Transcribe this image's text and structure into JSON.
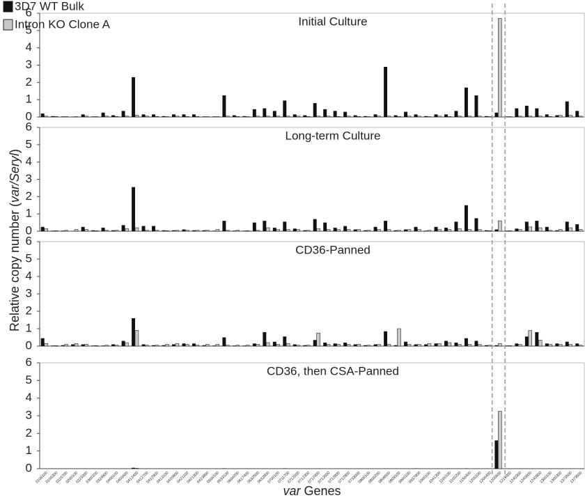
{
  "axis_labels": {
    "y": [
      "Relative copy number (",
      "var/Seryl",
      ")"
    ],
    "x": [
      "var",
      " Genes"
    ]
  },
  "chart_data": [
    {
      "type": "bar",
      "title": "Initial Culture",
      "ylim": [
        0,
        6
      ],
      "yticks": [
        0,
        1,
        2,
        3,
        4,
        5,
        6
      ],
      "legend": "top-left",
      "series": [
        {
          "name": "3D7 WT Bulk",
          "color": "#111111",
          "values": [
            0.2,
            0.05,
            0.03,
            0.02,
            0.15,
            0.03,
            0.25,
            0.1,
            0.35,
            2.3,
            0.15,
            0.15,
            0.05,
            0.15,
            0.15,
            0.15,
            0.03,
            0.03,
            1.25,
            0.1,
            0.05,
            0.45,
            0.5,
            0.35,
            0.95,
            0.15,
            0.1,
            0.8,
            0.45,
            0.35,
            0.3,
            0.1,
            0.05,
            0.15,
            2.9,
            0.1,
            0.3,
            0.15,
            0.05,
            0.15,
            0.15,
            0.35,
            1.7,
            1.25,
            0.05,
            0.25,
            0.03,
            0.5,
            0.65,
            0.5,
            0.15,
            0.1,
            0.9,
            0.35
          ]
        },
        {
          "name": "Intron KO Clone A",
          "color": "#c8c8c8",
          "values": [
            0.05,
            0.03,
            0.02,
            0.02,
            0.05,
            0.02,
            0.05,
            0.03,
            0.05,
            0.1,
            0.05,
            0.03,
            0.02,
            0.05,
            0.03,
            0.03,
            0.02,
            0.02,
            0.05,
            0.03,
            0.02,
            0.05,
            0.05,
            0.05,
            0.05,
            0.05,
            0.03,
            0.05,
            0.05,
            0.03,
            0.05,
            0.03,
            0.02,
            0.05,
            0.05,
            0.03,
            0.05,
            0.05,
            0.02,
            0.05,
            0.03,
            0.05,
            0.05,
            0.05,
            0.02,
            5.7,
            0.02,
            0.05,
            0.05,
            0.05,
            0.03,
            0.1,
            0.1,
            0.05
          ]
        }
      ]
    },
    {
      "type": "bar",
      "title": "Long-term Culture",
      "ylim": [
        0,
        6
      ],
      "yticks": [
        0,
        1,
        2,
        3,
        4,
        5,
        6
      ],
      "series": [
        {
          "name": "3D7 WT Bulk",
          "color": "#111111",
          "values": [
            0.25,
            0.03,
            0.03,
            0.02,
            0.25,
            0.05,
            0.2,
            0.05,
            0.35,
            2.55,
            0.3,
            0.3,
            0.05,
            0.05,
            0.1,
            0.05,
            0.05,
            0.03,
            0.6,
            0.03,
            0.03,
            0.5,
            0.6,
            0.2,
            0.55,
            0.15,
            0.05,
            0.7,
            0.5,
            0.2,
            0.3,
            0.1,
            0.05,
            0.25,
            0.6,
            0.05,
            0.1,
            0.25,
            0.03,
            0.25,
            0.2,
            0.55,
            1.5,
            0.75,
            0.05,
            0.1,
            0.03,
            0.15,
            0.55,
            0.6,
            0.25,
            0.05,
            0.55,
            0.4
          ]
        },
        {
          "name": "Intron KO Clone A",
          "color": "#c8c8c8",
          "values": [
            0.15,
            0.03,
            0.05,
            0.1,
            0.1,
            0.03,
            0.05,
            0.05,
            0.15,
            0.2,
            0.05,
            0.05,
            0.03,
            0.05,
            0.05,
            0.05,
            0.05,
            0.1,
            0.05,
            0.05,
            0.03,
            0.05,
            0.2,
            0.1,
            0.1,
            0.1,
            0.05,
            0.15,
            0.1,
            0.1,
            0.1,
            0.1,
            0.05,
            0.1,
            0.1,
            0.05,
            0.1,
            0.1,
            0.05,
            0.1,
            0.1,
            0.15,
            0.1,
            0.1,
            0.03,
            0.6,
            0.03,
            0.1,
            0.25,
            0.2,
            0.05,
            0.1,
            0.2,
            0.1
          ]
        }
      ]
    },
    {
      "type": "bar",
      "title": "CD36-Panned",
      "ylim": [
        0,
        6
      ],
      "yticks": [
        0,
        1,
        2,
        3,
        4,
        5,
        6
      ],
      "series": [
        {
          "name": "3D7 WT Bulk",
          "color": "#111111",
          "values": [
            0.45,
            0.03,
            0.05,
            0.1,
            0.1,
            0.03,
            0.03,
            0.1,
            0.3,
            1.6,
            0.1,
            0.05,
            0.05,
            0.1,
            0.15,
            0.15,
            0.05,
            0.03,
            0.5,
            0.03,
            0.03,
            0.15,
            0.8,
            0.25,
            0.55,
            0.1,
            0.05,
            0.35,
            0.2,
            0.15,
            0.2,
            0.1,
            0.05,
            0.1,
            0.85,
            0.05,
            0.25,
            0.1,
            0.1,
            0.15,
            0.3,
            0.2,
            0.45,
            0.3,
            0.05,
            0.05,
            0.03,
            0.15,
            0.55,
            0.8,
            0.15,
            0.15,
            0.25,
            0.15
          ]
        },
        {
          "name": "Intron KO Clone A",
          "color": "#c8c8c8",
          "values": [
            0.15,
            0.03,
            0.1,
            0.15,
            0.1,
            0.03,
            0.05,
            0.05,
            0.2,
            0.9,
            0.05,
            0.05,
            0.1,
            0.15,
            0.1,
            0.05,
            0.1,
            0.1,
            0.05,
            0.05,
            0.05,
            0.1,
            0.2,
            0.1,
            0.15,
            0.05,
            0.05,
            0.75,
            0.1,
            0.1,
            0.1,
            0.1,
            0.05,
            0.1,
            0.1,
            1.0,
            0.1,
            0.1,
            0.15,
            0.15,
            0.2,
            0.1,
            0.1,
            0.1,
            0.05,
            0.15,
            0.03,
            0.1,
            0.9,
            0.35,
            0.1,
            0.1,
            0.1,
            0.05
          ]
        }
      ]
    },
    {
      "type": "bar",
      "title": "CD36, then CSA-Panned",
      "ylim": [
        0,
        6
      ],
      "yticks": [
        0,
        1,
        2,
        3,
        4,
        5,
        6
      ],
      "categories": [
        "0100100",
        "0106300",
        "0115700",
        "0200100",
        "0223300",
        "0300100",
        "0324900",
        "0400100",
        "0400400",
        "0412400",
        "0412700",
        "0412900",
        "0413100",
        "0420900",
        "0421100",
        "0421300",
        "0423800",
        "0500100",
        "0533100",
        "0600200",
        "0617400",
        "0632500",
        "0632800",
        "0700100",
        "0711700",
        "0712000",
        "0712300",
        "0712400",
        "0712600",
        "0712800",
        "0712900",
        "0733000",
        "0800100",
        "0800200",
        "0808600",
        "0809100",
        "0900100",
        "0937800",
        "1000100",
        "1041300",
        "1100100",
        "1100200",
        "1150400",
        "1200100",
        "1200400",
        "1200600",
        "1219300",
        "1240300",
        "1240600",
        "1240900",
        "1300100",
        "1300300",
        "1373500",
        "1373600"
      ],
      "series": [
        {
          "name": "3D7 WT Bulk",
          "color": "#111111",
          "values": [
            0,
            0,
            0,
            0,
            0,
            0,
            0,
            0,
            0,
            0.05,
            0,
            0,
            0,
            0,
            0,
            0,
            0,
            0,
            0.02,
            0,
            0,
            0,
            0,
            0,
            0.02,
            0,
            0,
            0,
            0,
            0,
            0,
            0,
            0,
            0,
            0,
            0,
            0,
            0.02,
            0,
            0,
            0,
            0,
            0.02,
            0,
            0,
            1.6,
            0,
            0,
            0,
            0,
            0,
            0,
            0,
            0
          ]
        },
        {
          "name": "Intron KO Clone A",
          "color": "#c8c8c8",
          "values": [
            0,
            0,
            0,
            0,
            0,
            0,
            0,
            0,
            0,
            0.02,
            0,
            0,
            0,
            0,
            0,
            0,
            0,
            0,
            0,
            0,
            0,
            0,
            0,
            0,
            0,
            0,
            0,
            0,
            0,
            0,
            0,
            0,
            0,
            0,
            0,
            0,
            0,
            0,
            0,
            0,
            0,
            0,
            0,
            0,
            0,
            3.25,
            0,
            0,
            0,
            0,
            0,
            0,
            0,
            0
          ]
        }
      ]
    }
  ]
}
